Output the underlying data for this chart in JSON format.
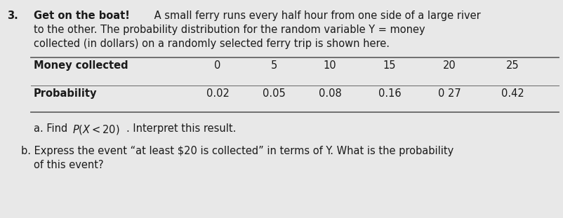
{
  "bg_color": "#e8e8e8",
  "text_color": "#1a1a1a",
  "line_color": "#666666",
  "number": "3.",
  "bold_text": "Get on the boat!",
  "line1_rest": " A small ferry runs every half hour from one side of a large river",
  "line2": "to the other. The probability distribution for the random variable Y = money",
  "line3": "collected (in dollars) on a randomly selected ferry trip is shown here.",
  "col_header": "Money collected",
  "row_header": "Probability",
  "money_vals": [
    "0",
    "5",
    "10",
    "15",
    "20",
    "25"
  ],
  "prob_vals": [
    "0.02",
    "0.05",
    "0.08",
    "0.16",
    "0 27",
    "0.42"
  ],
  "part_a_pre": "a. Find ",
  "part_a_math": "P(X < 20)",
  "part_a_post": ". Interpret this result.",
  "part_b_line1": "b. Express the event “at least $20 is collected” in terms of Y. What is the probability",
  "part_b_line2": "of this event?",
  "fontsize": 10.5,
  "bold_fontsize": 10.5
}
